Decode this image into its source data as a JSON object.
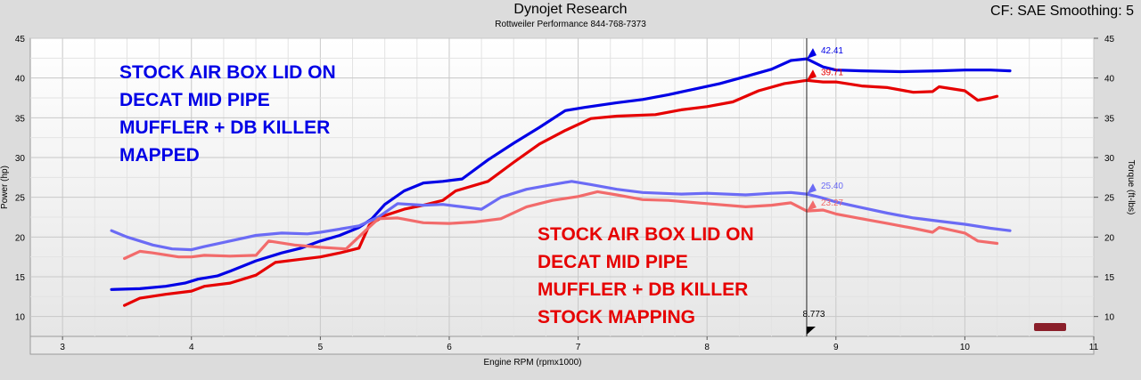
{
  "header": {
    "title": "Dynojet Research",
    "subtitle": "Rottweiler Performance 844-768-7373",
    "settings": "CF: SAE Smoothing: 5"
  },
  "annotations": {
    "blue": [
      "STOCK AIR BOX LID ON",
      "DECAT MID PIPE",
      "MUFFLER + DB KILLER",
      "MAPPED"
    ],
    "red": [
      "STOCK AIR BOX LID ON",
      "DECAT MID PIPE",
      "MUFFLER + DB KILLER",
      "STOCK MAPPING"
    ]
  },
  "chart_data": {
    "type": "line",
    "xlabel": "Engine RPM (rpmx1000)",
    "ylabel_left": "Power (hp)",
    "ylabel_right": "Torque (ft-lbs)",
    "xlim": [
      2.75,
      11
    ],
    "ylim": [
      7.5,
      45
    ],
    "x_ticks": [
      3,
      4,
      5,
      6,
      7,
      8,
      9,
      10,
      11
    ],
    "y_ticks": [
      10,
      15,
      20,
      25,
      30,
      35,
      40,
      45
    ],
    "grid": true,
    "cursor": {
      "x": 8.773,
      "label": "8.773"
    },
    "colors": {
      "blue_power": "#0000e6",
      "red_power": "#e60000",
      "blue_torque": "#6b6bf5",
      "red_torque": "#f26b6b"
    },
    "series": [
      {
        "color": "blue_power",
        "cursor_value": "42.41",
        "x": [
          3.38,
          3.6,
          3.8,
          3.95,
          4.05,
          4.2,
          4.3,
          4.5,
          4.7,
          4.85,
          5.0,
          5.15,
          5.3,
          5.4,
          5.5,
          5.65,
          5.8,
          5.95,
          6.1,
          6.3,
          6.5,
          6.7,
          6.9,
          7.05,
          7.3,
          7.5,
          7.7,
          7.9,
          8.1,
          8.3,
          8.5,
          8.65,
          8.773,
          8.9,
          9.0,
          9.2,
          9.5,
          9.8,
          10.0,
          10.2,
          10.35
        ],
        "y": [
          13.4,
          13.5,
          13.8,
          14.2,
          14.7,
          15.1,
          15.7,
          17.0,
          18.0,
          18.6,
          19.5,
          20.2,
          21.2,
          22.3,
          24.1,
          25.8,
          26.8,
          27.0,
          27.3,
          29.7,
          31.8,
          33.8,
          35.9,
          36.3,
          36.9,
          37.3,
          37.9,
          38.6,
          39.3,
          40.2,
          41.1,
          42.2,
          42.41,
          41.4,
          41.0,
          40.9,
          40.8,
          40.9,
          41.0,
          41.0,
          40.9
        ]
      },
      {
        "color": "red_power",
        "cursor_value": "39.71",
        "x": [
          3.48,
          3.6,
          3.8,
          4.0,
          4.1,
          4.3,
          4.5,
          4.65,
          4.8,
          5.0,
          5.15,
          5.3,
          5.38,
          5.5,
          5.65,
          5.8,
          5.95,
          6.05,
          6.3,
          6.5,
          6.7,
          6.9,
          7.1,
          7.3,
          7.6,
          7.8,
          8.0,
          8.2,
          8.4,
          8.6,
          8.773,
          8.9,
          9.0,
          9.2,
          9.4,
          9.6,
          9.75,
          9.8,
          10.0,
          10.1,
          10.2,
          10.25
        ],
        "y": [
          11.4,
          12.3,
          12.8,
          13.2,
          13.8,
          14.2,
          15.2,
          16.8,
          17.1,
          17.5,
          18.0,
          18.6,
          21.5,
          22.7,
          23.5,
          24.0,
          24.6,
          25.8,
          27.0,
          29.4,
          31.7,
          33.4,
          34.9,
          35.2,
          35.4,
          36.0,
          36.4,
          37.0,
          38.4,
          39.3,
          39.71,
          39.5,
          39.5,
          39.0,
          38.8,
          38.2,
          38.3,
          38.9,
          38.4,
          37.2,
          37.5,
          37.7
        ]
      },
      {
        "color": "blue_torque",
        "cursor_value": "25.40",
        "x": [
          3.38,
          3.5,
          3.7,
          3.85,
          4.0,
          4.1,
          4.3,
          4.5,
          4.7,
          4.9,
          5.0,
          5.15,
          5.3,
          5.45,
          5.6,
          5.8,
          5.95,
          6.1,
          6.25,
          6.4,
          6.6,
          6.8,
          6.95,
          7.1,
          7.3,
          7.5,
          7.8,
          8.0,
          8.3,
          8.5,
          8.65,
          8.773,
          8.9,
          9.0,
          9.2,
          9.4,
          9.6,
          9.8,
          10.0,
          10.2,
          10.35
        ],
        "y": [
          20.8,
          20.0,
          19.0,
          18.5,
          18.4,
          18.8,
          19.5,
          20.2,
          20.5,
          20.4,
          20.6,
          21.0,
          21.4,
          22.5,
          24.2,
          24.0,
          24.1,
          23.8,
          23.5,
          25.0,
          26.0,
          26.6,
          27.0,
          26.6,
          26.0,
          25.6,
          25.4,
          25.5,
          25.3,
          25.5,
          25.6,
          25.4,
          24.9,
          24.4,
          23.7,
          23.0,
          22.4,
          22.0,
          21.6,
          21.1,
          20.8
        ]
      },
      {
        "color": "red_torque",
        "cursor_value": "23.27",
        "x": [
          3.48,
          3.6,
          3.7,
          3.9,
          4.0,
          4.1,
          4.3,
          4.5,
          4.6,
          4.8,
          5.0,
          5.2,
          5.35,
          5.45,
          5.6,
          5.8,
          6.0,
          6.2,
          6.4,
          6.6,
          6.8,
          7.0,
          7.15,
          7.3,
          7.5,
          7.7,
          8.0,
          8.3,
          8.5,
          8.65,
          8.773,
          8.9,
          9.0,
          9.2,
          9.4,
          9.6,
          9.75,
          9.8,
          10.0,
          10.1,
          10.25
        ],
        "y": [
          17.3,
          18.2,
          18.0,
          17.5,
          17.5,
          17.7,
          17.6,
          17.7,
          19.5,
          19.0,
          18.7,
          18.5,
          20.8,
          22.3,
          22.4,
          21.8,
          21.7,
          21.9,
          22.3,
          23.8,
          24.6,
          25.1,
          25.7,
          25.3,
          24.7,
          24.6,
          24.2,
          23.8,
          24.0,
          24.3,
          23.27,
          23.4,
          22.9,
          22.3,
          21.7,
          21.1,
          20.6,
          21.2,
          20.5,
          19.5,
          19.2
        ]
      }
    ]
  }
}
